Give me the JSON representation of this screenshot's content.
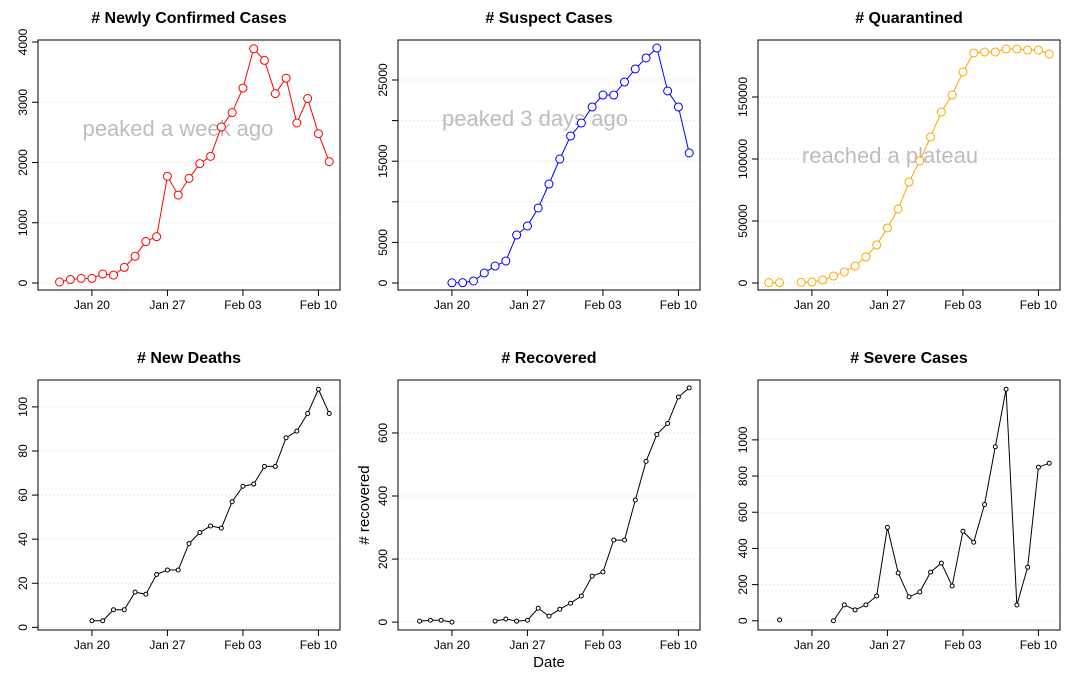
{
  "chart_data": [
    {
      "type": "line",
      "title": "# Newly Confirmed Cases",
      "color": "#ff0000",
      "grid": true,
      "annotation": "peaked a week ago",
      "x": [
        "Jan 17",
        "Jan 18",
        "Jan 19",
        "Jan 20",
        "Jan 21",
        "Jan 22",
        "Jan 23",
        "Jan 24",
        "Jan 25",
        "Jan 26",
        "Jan 27",
        "Jan 28",
        "Jan 29",
        "Jan 30",
        "Jan 31",
        "Feb 01",
        "Feb 02",
        "Feb 03",
        "Feb 04",
        "Feb 05",
        "Feb 06",
        "Feb 07",
        "Feb 08",
        "Feb 09",
        "Feb 10",
        "Feb 11"
      ],
      "values": [
        17,
        59,
        77,
        77,
        149,
        131,
        259,
        444,
        688,
        769,
        1771,
        1459,
        1737,
        1982,
        2102,
        2590,
        2829,
        3235,
        3887,
        3694,
        3143,
        3399,
        2656,
        3062,
        2478,
        2015
      ],
      "xlim": [
        "Jan 15",
        "Feb 12"
      ],
      "xticks": [
        "Jan 20",
        "Jan 27",
        "Feb 03",
        "Feb 10"
      ],
      "ylim": [
        -116,
        4033
      ],
      "yticks": [
        0,
        1000,
        2000,
        3000,
        4000
      ]
    },
    {
      "type": "line",
      "title": "# Suspect Cases",
      "color": "#0000ff",
      "grid": true,
      "annotation": "peaked 3 days ago",
      "x": [
        "Jan 20",
        "Jan 21",
        "Jan 22",
        "Jan 23",
        "Jan 24",
        "Jan 25",
        "Jan 26",
        "Jan 27",
        "Jan 28",
        "Jan 29",
        "Jan 30",
        "Jan 31",
        "Feb 01",
        "Feb 02",
        "Feb 03",
        "Feb 04",
        "Feb 05",
        "Feb 06",
        "Feb 07",
        "Feb 08",
        "Feb 09",
        "Feb 10",
        "Feb 11"
      ],
      "values": [
        27,
        40,
        250,
        1230,
        2090,
        2710,
        5910,
        7020,
        9240,
        12190,
        15270,
        18100,
        19700,
        21680,
        23150,
        23150,
        24750,
        26360,
        27710,
        28940,
        23650,
        21680,
        16010
      ],
      "xlim": [
        "Jan 15",
        "Feb 12"
      ],
      "xticks": [
        "Jan 20",
        "Jan 27",
        "Feb 03",
        "Feb 10"
      ],
      "ylim": [
        -862,
        29926
      ],
      "yticks": [
        0,
        5000,
        15000,
        25000
      ],
      "yminorticks": [
        10000,
        20000
      ]
    },
    {
      "type": "line",
      "title": "# Quarantined",
      "color": "#ffa500",
      "grid": true,
      "annotation": "reached a plateau",
      "x": [
        "Jan 16",
        "Jan 17",
        "Jan 18",
        "Jan 19",
        "Jan 20",
        "Jan 21",
        "Jan 22",
        "Jan 23",
        "Jan 24",
        "Jan 25",
        "Jan 26",
        "Jan 27",
        "Jan 28",
        "Jan 29",
        "Jan 30",
        "Jan 31",
        "Feb 01",
        "Feb 02",
        "Feb 03",
        "Feb 04",
        "Feb 05",
        "Feb 06",
        "Feb 07",
        "Feb 08",
        "Feb 09",
        "Feb 10",
        "Feb 11"
      ],
      "values": [
        300,
        300,
        null,
        500,
        800,
        2400,
        5600,
        8900,
        13700,
        21000,
        30600,
        44400,
        59700,
        81500,
        98400,
        117700,
        137900,
        151600,
        170200,
        185500,
        186300,
        186300,
        188700,
        188700,
        187900,
        187900,
        184700
      ],
      "xlim": [
        "Jan 15",
        "Feb 12"
      ],
      "xticks": [
        "Jan 20",
        "Jan 27",
        "Feb 03",
        "Feb 10"
      ],
      "ylim": [
        -5645,
        195968
      ],
      "yticks": [
        0,
        50000,
        100000,
        150000
      ]
    },
    {
      "type": "line",
      "title": "# New Deaths",
      "color": "#000000",
      "grid": true,
      "x": [
        "Jan 20",
        "Jan 21",
        "Jan 22",
        "Jan 23",
        "Jan 24",
        "Jan 25",
        "Jan 26",
        "Jan 27",
        "Jan 28",
        "Jan 29",
        "Jan 30",
        "Jan 31",
        "Feb 01",
        "Feb 02",
        "Feb 03",
        "Feb 04",
        "Feb 05",
        "Feb 06",
        "Feb 07",
        "Feb 08",
        "Feb 09",
        "Feb 10",
        "Feb 11"
      ],
      "values": [
        3,
        3,
        8,
        8,
        16,
        15,
        24,
        26,
        26,
        38,
        43,
        46,
        45,
        57,
        64,
        65,
        73,
        73,
        86,
        89,
        97,
        108,
        97
      ],
      "xlim": [
        "Jan 15",
        "Feb 12"
      ],
      "xticks": [
        "Jan 20",
        "Jan 27",
        "Feb 03",
        "Feb 10"
      ],
      "ylim": [
        -1.2,
        112.2
      ],
      "yticks": [
        0,
        20,
        40,
        60,
        80,
        100
      ]
    },
    {
      "type": "line",
      "title": "# Recovered",
      "color": "#000000",
      "grid": true,
      "xlabel": "Date",
      "ylabel": "# recovered",
      "x": [
        "Jan 17",
        "Jan 18",
        "Jan 19",
        "Jan 20",
        "Jan 21",
        "Jan 22",
        "Jan 23",
        "Jan 24",
        "Jan 25",
        "Jan 26",
        "Jan 27",
        "Jan 28",
        "Jan 29",
        "Jan 30",
        "Jan 31",
        "Feb 01",
        "Feb 02",
        "Feb 03",
        "Feb 04",
        "Feb 05",
        "Feb 06",
        "Feb 07",
        "Feb 08",
        "Feb 09",
        "Feb 10",
        "Feb 11"
      ],
      "values": [
        3,
        6,
        6,
        0,
        null,
        null,
        null,
        3,
        10,
        3,
        6,
        44,
        19,
        41,
        60,
        83,
        146,
        159,
        260,
        260,
        387,
        510,
        595,
        630,
        714,
        743
      ],
      "xlim": [
        "Jan 15",
        "Feb 12"
      ],
      "xticks": [
        "Jan 20",
        "Jan 27",
        "Feb 03",
        "Feb 10"
      ],
      "ylim": [
        -25,
        768
      ],
      "yticks": [
        0,
        200,
        400,
        600
      ]
    },
    {
      "type": "line",
      "title": "# Severe Cases",
      "color": "#000000",
      "grid": true,
      "x": [
        "Jan 17",
        "Jan 18",
        "Jan 19",
        "Jan 20",
        "Jan 21",
        "Jan 22",
        "Jan 23",
        "Jan 24",
        "Jan 25",
        "Jan 26",
        "Jan 27",
        "Jan 28",
        "Jan 29",
        "Jan 30",
        "Jan 31",
        "Feb 01",
        "Feb 02",
        "Feb 03",
        "Feb 04",
        "Feb 05",
        "Feb 06",
        "Feb 07",
        "Feb 08",
        "Feb 09",
        "Feb 10",
        "Feb 11"
      ],
      "values": [
        5,
        null,
        null,
        null,
        null,
        0,
        88,
        60,
        88,
        137,
        516,
        264,
        132,
        159,
        269,
        319,
        192,
        495,
        434,
        643,
        962,
        1280,
        87,
        296,
        849,
        871
      ],
      "xlim": [
        "Jan 15",
        "Feb 12"
      ],
      "xticks": [
        "Jan 20",
        "Jan 27",
        "Feb 03",
        "Feb 10"
      ],
      "ylim": [
        -51,
        1331
      ],
      "yticks": [
        0,
        200,
        400,
        600,
        800,
        1000
      ]
    }
  ]
}
